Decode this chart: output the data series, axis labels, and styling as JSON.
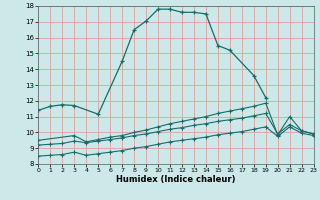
{
  "xlabel": "Humidex (Indice chaleur)",
  "bg_color": "#cce8e8",
  "grid_color": "#e0a0a0",
  "line_color": "#1a6b6b",
  "ylim": [
    8,
    18
  ],
  "xlim": [
    0,
    23
  ],
  "yticks": [
    8,
    9,
    10,
    11,
    12,
    13,
    14,
    15,
    16,
    17,
    18
  ],
  "xticks": [
    0,
    1,
    2,
    3,
    4,
    5,
    6,
    7,
    8,
    9,
    10,
    11,
    12,
    13,
    14,
    15,
    16,
    17,
    18,
    19,
    20,
    21,
    22,
    23
  ],
  "curve1_x": [
    0,
    1,
    2,
    3,
    5,
    7,
    8,
    9,
    10,
    11,
    12,
    13,
    14,
    15,
    16,
    18,
    19
  ],
  "curve1_y": [
    11.4,
    11.65,
    11.75,
    11.7,
    11.15,
    14.5,
    16.5,
    17.05,
    17.8,
    17.8,
    17.6,
    17.6,
    17.5,
    15.5,
    15.2,
    13.6,
    12.2
  ],
  "curve2_x": [
    0,
    3,
    4,
    5,
    6,
    7,
    8,
    9,
    10,
    11,
    12,
    13,
    14,
    15,
    16,
    17,
    18,
    19,
    20,
    21,
    22,
    23
  ],
  "curve2_y": [
    9.5,
    9.8,
    9.4,
    9.55,
    9.7,
    9.8,
    10.0,
    10.15,
    10.35,
    10.55,
    10.7,
    10.85,
    11.0,
    11.2,
    11.35,
    11.5,
    11.65,
    11.85,
    9.85,
    11.0,
    10.1,
    9.9
  ],
  "curve3_x": [
    0,
    1,
    2,
    3,
    4,
    5,
    6,
    7,
    8,
    9,
    10,
    11,
    12,
    13,
    14,
    15,
    16,
    17,
    18,
    19,
    20,
    21,
    22,
    23
  ],
  "curve3_y": [
    9.2,
    9.25,
    9.3,
    9.45,
    9.35,
    9.45,
    9.55,
    9.65,
    9.8,
    9.9,
    10.05,
    10.2,
    10.3,
    10.45,
    10.55,
    10.7,
    10.8,
    10.9,
    11.05,
    11.2,
    9.9,
    10.5,
    10.1,
    9.9
  ],
  "curve4_x": [
    0,
    1,
    2,
    3,
    4,
    5,
    6,
    7,
    8,
    9,
    10,
    11,
    12,
    13,
    14,
    15,
    16,
    17,
    18,
    19,
    20,
    21,
    22,
    23
  ],
  "curve4_y": [
    8.5,
    8.55,
    8.6,
    8.75,
    8.55,
    8.65,
    8.75,
    8.85,
    9.0,
    9.1,
    9.25,
    9.4,
    9.5,
    9.6,
    9.7,
    9.85,
    9.95,
    10.05,
    10.2,
    10.35,
    9.75,
    10.35,
    9.95,
    9.8
  ]
}
